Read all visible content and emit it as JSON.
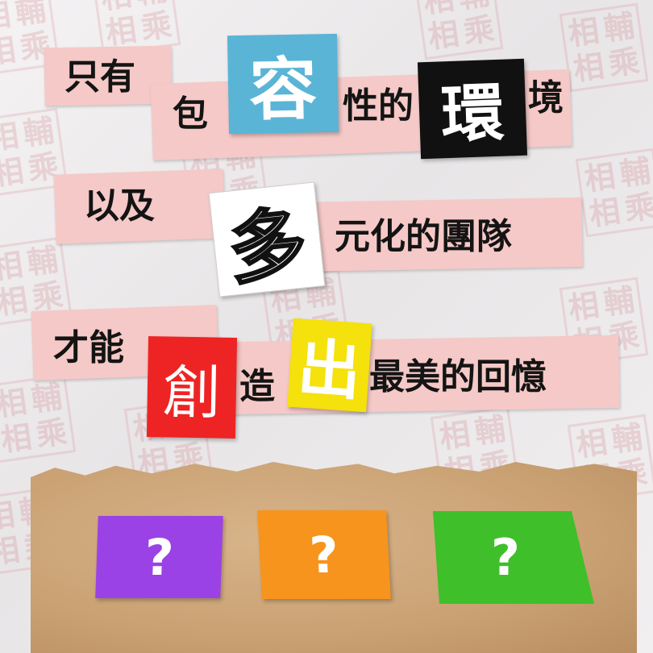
{
  "background": {
    "seal_chars": [
      "相",
      "輔",
      "相",
      "乘"
    ],
    "seal_color": "#d2828c"
  },
  "line1": {
    "part1": "只有",
    "part2": "包",
    "card_char": "容",
    "part3": "性的",
    "card2_char": "環",
    "part4": "境"
  },
  "line2": {
    "part1": "以及",
    "card_char": "多",
    "part2": "元化的團隊"
  },
  "line3": {
    "part1": "才能",
    "card_char": "創",
    "part2": "造",
    "card2_char": "出",
    "part3": "最美的回憶"
  },
  "bottom": {
    "cards": [
      {
        "label": "?",
        "color": "#9b42e6"
      },
      {
        "label": "?",
        "color": "#f7941d"
      },
      {
        "label": "?",
        "color": "#3fbf2a"
      }
    ]
  },
  "colors": {
    "strip": "#f5c9c7",
    "blue": "#5ab4d6",
    "black": "#111111",
    "red": "#ee2424",
    "yellow": "#f5e10c",
    "white": "#ffffff"
  }
}
